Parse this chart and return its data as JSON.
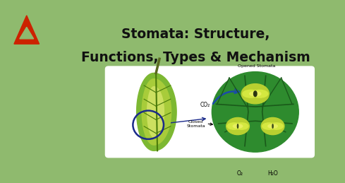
{
  "bg_color": "#8fba6e",
  "title_line1": "Stomata: Structure,",
  "title_line2": "Functions, Types & Mechanism",
  "title_color": "#111111",
  "title_fontsize": 13.5,
  "logo_color": "#cc2200",
  "card_facecolor": "#ffffff",
  "leaf_outer": "#7db832",
  "leaf_mid": "#a8cc3a",
  "leaf_light": "#cce060",
  "leaf_vein": "#4a7a0a",
  "leaf_stem": "#5a6a20",
  "circle_fill": "#2e8b2e",
  "cell_fill": "#4aaa30",
  "cell_edge": "#1a5a1a",
  "stomate_guard": "#b8d840",
  "stomate_inner": "#c8e050",
  "stomate_pore_open": "#2a3a10",
  "stomate_pore_closed": "#b8c830",
  "arrow_color": "#1a4aaa",
  "label_co2": "CO₂",
  "label_opened": "Opened Stomata",
  "label_closed": "Closed\nStomata",
  "label_o2": "O₂",
  "label_h2o": "H₂O"
}
